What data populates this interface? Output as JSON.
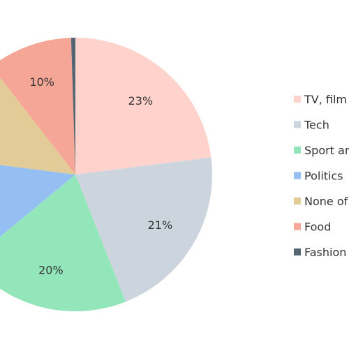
{
  "chart_data": {
    "type": "pie",
    "title": "",
    "slices": [
      {
        "name": "TV, film",
        "value": 23,
        "label": "23%",
        "color": "#FFD3CC"
      },
      {
        "name": "Tech",
        "value": 21,
        "label": "21%",
        "color": "#CCD5DE"
      },
      {
        "name": "Sport ar",
        "value": 20,
        "label": "20%",
        "color": "#93E6BA"
      },
      {
        "name": "Politics",
        "value": 13,
        "label": "",
        "color": "#95BFF2"
      },
      {
        "name": "None of",
        "value": 12.5,
        "label": "",
        "color": "#E3CB98"
      },
      {
        "name": "Food",
        "value": 10,
        "label": "10%",
        "color": "#F6A696"
      },
      {
        "name": "Fashion",
        "value": 0.5,
        "label": "",
        "color": "#546672"
      }
    ],
    "legend_position": "right"
  }
}
